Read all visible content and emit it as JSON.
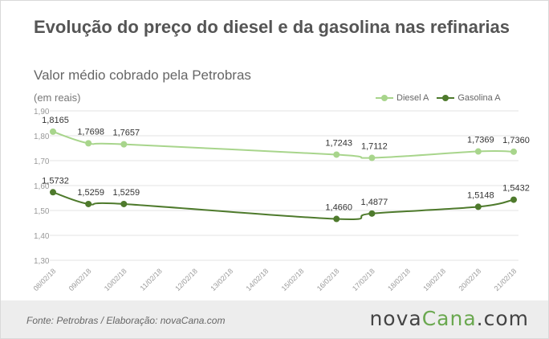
{
  "header": {
    "title": "Evolução do preço do diesel e da gasolina nas refinarias",
    "subtitle": "Valor médio cobrado pela Petrobras",
    "unit_label": "(em reais)"
  },
  "footer": {
    "source": "Fonte:  Petrobras  / Elaboração:  novaCana.com",
    "brand_prefix": "nova",
    "brand_name": "Cana",
    "brand_suffix": ".com"
  },
  "colors": {
    "diesel": "#a8d58c",
    "gasolina": "#4e7a2c",
    "grid": "#e3e3e3",
    "axis_text": "#999999",
    "label_text": "#333333"
  },
  "chart_data": {
    "type": "line",
    "title": "Evolução do preço do diesel e da gasolina nas refinarias",
    "subtitle": "Valor médio cobrado pela Petrobras",
    "ylabel": "(em reais)",
    "xlabel": "",
    "categories": [
      "08/02/18",
      "09/02/18",
      "10/02/18",
      "11/02/18",
      "12/02/18",
      "13/02/18",
      "14/02/18",
      "15/02/18",
      "16/02/18",
      "17/02/18",
      "18/02/18",
      "19/02/18",
      "20/02/18",
      "21/02/18"
    ],
    "yticks": [
      "1,90",
      "1,80",
      "1,70",
      "1,60",
      "1,50",
      "1,40",
      "1,30"
    ],
    "ylim": [
      1.3,
      1.9
    ],
    "grid": true,
    "legend_position": "top-right",
    "series": [
      {
        "name": "Diesel A",
        "points": [
          {
            "x": "08/02/18",
            "y": 1.8165,
            "label": "1,8165"
          },
          {
            "x": "09/02/18",
            "y": 1.7698,
            "label": "1,7698"
          },
          {
            "x": "10/02/18",
            "y": 1.7657,
            "label": "1,7657"
          },
          {
            "x": "16/02/18",
            "y": 1.7243,
            "label": "1,7243"
          },
          {
            "x": "17/02/18",
            "y": 1.7112,
            "label": "1,7112"
          },
          {
            "x": "20/02/18",
            "y": 1.7369,
            "label": "1,7369"
          },
          {
            "x": "21/02/18",
            "y": 1.736,
            "label": "1,7360"
          }
        ]
      },
      {
        "name": "Gasolina A",
        "points": [
          {
            "x": "08/02/18",
            "y": 1.5732,
            "label": "1,5732"
          },
          {
            "x": "09/02/18",
            "y": 1.5259,
            "label": "1,5259"
          },
          {
            "x": "10/02/18",
            "y": 1.5259,
            "label": "1,5259"
          },
          {
            "x": "16/02/18",
            "y": 1.466,
            "label": "1,4660"
          },
          {
            "x": "17/02/18",
            "y": 1.4877,
            "label": "1,4877"
          },
          {
            "x": "20/02/18",
            "y": 1.5148,
            "label": "1,5148"
          },
          {
            "x": "21/02/18",
            "y": 1.5432,
            "label": "1,5432"
          }
        ]
      }
    ]
  }
}
